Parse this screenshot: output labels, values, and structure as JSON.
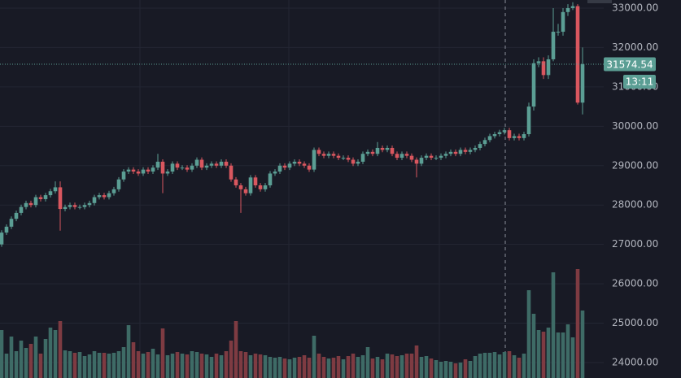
{
  "chart_data": {
    "type": "candlestick",
    "up_color": "#5b9e94",
    "down_color": "#d9575f",
    "volume_up_color": "#3e6b66",
    "volume_down_color": "#7e3b42",
    "grid": true,
    "ylim": [
      23608,
      33206
    ],
    "yticks": [
      {
        "value": 24000,
        "label": "24000.00"
      },
      {
        "value": 25000,
        "label": "25000.00"
      },
      {
        "value": 26000,
        "label": "26000.00"
      },
      {
        "value": 27000,
        "label": "27000.00"
      },
      {
        "value": 28000,
        "label": "28000.00"
      },
      {
        "value": 29000,
        "label": "29000.00"
      },
      {
        "value": 30000,
        "label": "30000.00"
      },
      {
        "value": 31000,
        "label": "31000.00"
      },
      {
        "value": 32000,
        "label": "32000.00"
      },
      {
        "value": 33000,
        "label": "33000.00"
      }
    ],
    "countdown": "13:11",
    "open": [
      27000,
      27300,
      27450,
      27650,
      27800,
      27950,
      28050,
      28000,
      28200,
      28150,
      28250,
      28350,
      28450,
      27900,
      27950,
      28000,
      27950,
      27950,
      28000,
      28050,
      28200,
      28250,
      28200,
      28300,
      28400,
      28650,
      28850,
      28900,
      28850,
      28800,
      28900,
      28850,
      28950,
      29100,
      28800,
      28850,
      29050,
      28950,
      28950,
      28900,
      29000,
      29150,
      28950,
      29000,
      29050,
      29000,
      29100,
      29000,
      28650,
      28500,
      28400,
      28300,
      28700,
      28500,
      28400,
      28500,
      28800,
      28850,
      29000,
      28950,
      29050,
      29100,
      29050,
      29000,
      28900,
      29400,
      29300,
      29250,
      29300,
      29250,
      29200,
      29200,
      29150,
      29050,
      29100,
      29300,
      29350,
      29300,
      29450,
      29400,
      29450,
      29300,
      29200,
      29300,
      29250,
      29150,
      29050,
      29200,
      29250,
      29200,
      29200,
      29250,
      29300,
      29350,
      29300,
      29400,
      29350,
      29400,
      29450,
      29550,
      29650,
      29750,
      29800,
      29850,
      29900,
      29700,
      29750,
      29700,
      29800,
      30500,
      31600,
      31650,
      31300,
      31700,
      32400,
      32400,
      32900,
      33000,
      33050,
      30600
    ],
    "high": [
      27360,
      27510,
      27710,
      27860,
      28010,
      28110,
      28110,
      28260,
      28260,
      28310,
      28410,
      28600,
      28600,
      28010,
      28060,
      28060,
      28010,
      28060,
      28110,
      28260,
      28310,
      28310,
      28360,
      28460,
      28710,
      28910,
      28960,
      28960,
      28910,
      28960,
      28960,
      29010,
      29300,
      29160,
      28910,
      29110,
      29110,
      29010,
      29010,
      29060,
      29210,
      29210,
      29060,
      29110,
      29110,
      29160,
      29160,
      29060,
      28710,
      28560,
      28460,
      28760,
      28760,
      28560,
      28560,
      28860,
      28910,
      29060,
      29060,
      29110,
      29160,
      29160,
      29110,
      29060,
      29460,
      29460,
      29360,
      29360,
      29360,
      29310,
      29260,
      29260,
      29210,
      29160,
      29360,
      29410,
      29410,
      29600,
      29510,
      29510,
      29510,
      29360,
      29360,
      29360,
      29310,
      29210,
      29260,
      29310,
      29310,
      29260,
      29310,
      29360,
      29410,
      29410,
      29460,
      29460,
      29460,
      29510,
      29610,
      29710,
      29810,
      29860,
      29910,
      29960,
      29960,
      29810,
      29810,
      29860,
      30600,
      31700,
      31750,
      31750,
      31800,
      33000,
      32600,
      33000,
      33100,
      33150,
      33100,
      32000
    ],
    "low": [
      26940,
      27240,
      27390,
      27590,
      27740,
      27890,
      27940,
      27940,
      28090,
      28090,
      28190,
      28290,
      27350,
      27840,
      27890,
      27890,
      27890,
      27890,
      27940,
      27990,
      28140,
      28140,
      28140,
      28240,
      28340,
      28590,
      28790,
      28790,
      28740,
      28740,
      28790,
      28790,
      28890,
      28300,
      28740,
      28790,
      28890,
      28890,
      28840,
      28840,
      28940,
      28890,
      28890,
      28940,
      28940,
      28940,
      28940,
      28590,
      28440,
      27800,
      28240,
      28240,
      28440,
      28340,
      28340,
      28440,
      28740,
      28790,
      28890,
      28890,
      28990,
      28990,
      28940,
      28840,
      28840,
      29240,
      29190,
      29190,
      29190,
      29140,
      29140,
      29090,
      28990,
      28990,
      29040,
      29240,
      29240,
      29240,
      29340,
      29340,
      29240,
      29140,
      29140,
      29190,
      29090,
      28700,
      28990,
      29140,
      29140,
      29140,
      29140,
      29190,
      29240,
      29240,
      29240,
      29290,
      29290,
      29340,
      29390,
      29490,
      29590,
      29690,
      29740,
      29790,
      29640,
      29640,
      29640,
      29640,
      29740,
      30400,
      31500,
      31200,
      31200,
      31650,
      32300,
      32300,
      32800,
      32950,
      30550,
      30300
    ],
    "close": [
      27300,
      27450,
      27650,
      27800,
      27950,
      28050,
      28000,
      28200,
      28150,
      28250,
      28350,
      28450,
      27900,
      27950,
      28000,
      27950,
      27950,
      28000,
      28050,
      28200,
      28250,
      28200,
      28300,
      28400,
      28650,
      28850,
      28900,
      28850,
      28800,
      28900,
      28850,
      28950,
      29100,
      28800,
      28850,
      29050,
      28950,
      28950,
      28900,
      29000,
      29150,
      28950,
      29000,
      29050,
      29000,
      29100,
      29000,
      28650,
      28500,
      28400,
      28300,
      28700,
      28500,
      28400,
      28500,
      28800,
      28850,
      29000,
      28950,
      29050,
      29100,
      29050,
      29000,
      28900,
      29400,
      29300,
      29250,
      29300,
      29250,
      29200,
      29200,
      29150,
      29050,
      29100,
      29300,
      29350,
      29300,
      29450,
      29400,
      29450,
      29300,
      29200,
      29300,
      29250,
      29150,
      29050,
      29200,
      29250,
      29200,
      29200,
      29250,
      29300,
      29350,
      29300,
      29400,
      29350,
      29400,
      29450,
      29550,
      29650,
      29750,
      29800,
      29850,
      29900,
      29700,
      29750,
      29700,
      29800,
      30500,
      31600,
      31650,
      31300,
      31700,
      32400,
      32400,
      32900,
      33000,
      33050,
      30600,
      31574.54
    ],
    "volume": [
      590,
      300,
      510,
      330,
      460,
      370,
      420,
      510,
      300,
      480,
      620,
      590,
      700,
      340,
      330,
      310,
      320,
      270,
      290,
      330,
      310,
      310,
      300,
      310,
      330,
      380,
      650,
      440,
      330,
      300,
      320,
      360,
      290,
      610,
      280,
      300,
      320,
      300,
      290,
      330,
      320,
      300,
      290,
      260,
      300,
      280,
      330,
      460,
      700,
      330,
      320,
      280,
      300,
      290,
      280,
      260,
      250,
      260,
      240,
      230,
      250,
      260,
      280,
      250,
      520,
      300,
      260,
      240,
      250,
      270,
      230,
      270,
      300,
      260,
      280,
      380,
      240,
      260,
      230,
      300,
      290,
      270,
      280,
      300,
      300,
      400,
      260,
      270,
      240,
      220,
      200,
      210,
      200,
      180,
      190,
      230,
      210,
      270,
      300,
      310,
      310,
      320,
      290,
      320,
      330,
      280,
      250,
      300,
      1080,
      790,
      590,
      570,
      620,
      1300,
      560,
      560,
      660,
      500,
      1340,
      830
    ]
  }
}
